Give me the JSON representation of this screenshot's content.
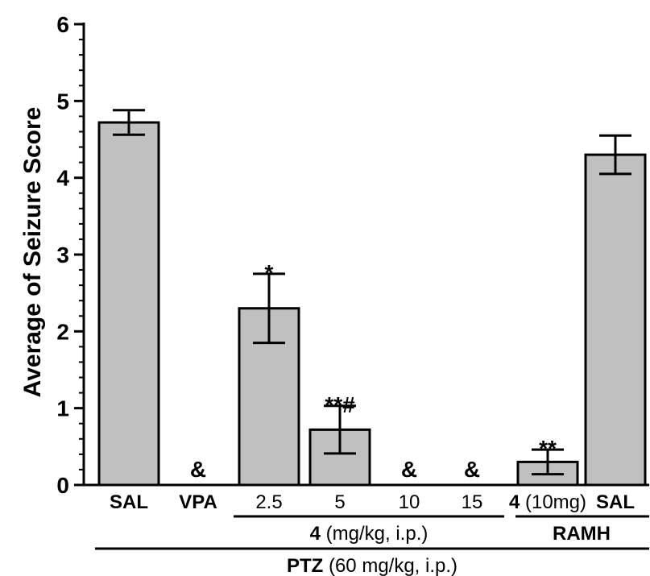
{
  "chart_data": {
    "type": "bar",
    "ylabel": "Average of Seizure Score",
    "ylim": [
      0,
      6
    ],
    "yticks": [
      "0",
      "1",
      "2",
      "3",
      "4",
      "5",
      "6"
    ],
    "bar_color": "#c0c0c0",
    "categories": [
      "SAL",
      "VPA",
      "2.5",
      "5",
      "10",
      "15",
      "4 (10mg)",
      "SAL"
    ],
    "category_bold": [
      true,
      true,
      false,
      false,
      false,
      false,
      false,
      true
    ],
    "values": [
      4.72,
      0,
      2.3,
      0.72,
      0,
      0,
      0.3,
      4.3
    ],
    "errors": [
      0.16,
      0,
      0.45,
      0.31,
      0,
      0,
      0.16,
      0.25
    ],
    "annotations": [
      "",
      "&",
      "*",
      "**#",
      "&",
      "&",
      "**",
      ""
    ],
    "groups": [
      {
        "bold": "4",
        "rest": " (mg/kg, i.p.)"
      },
      {
        "bold": "RAMH",
        "rest": ""
      },
      {
        "bold": "PTZ",
        "rest": " (60 mg/kg, i.p.)"
      }
    ],
    "legend": "none",
    "grid": false
  }
}
